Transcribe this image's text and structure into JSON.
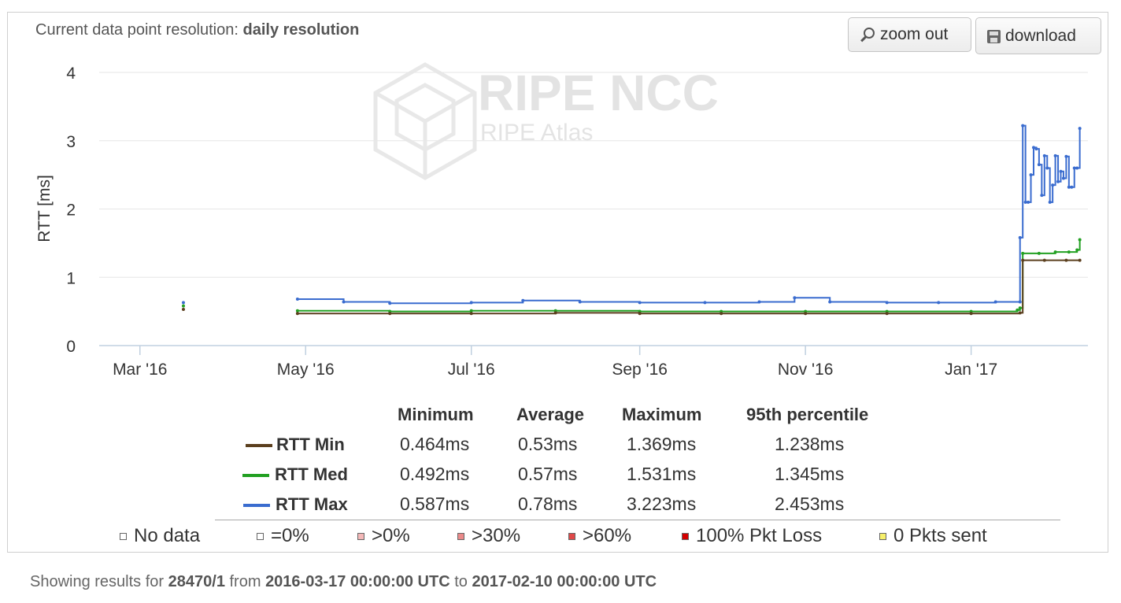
{
  "header": {
    "resolution_prefix": "Current data point resolution:",
    "resolution_value": "daily resolution"
  },
  "toolbar": {
    "zoom_out_label": "zoom out",
    "download_label": "download"
  },
  "watermark": {
    "brand": "RIPE NCC",
    "product": "RIPE Atlas"
  },
  "colors": {
    "rtt_min": "#5b3f1e",
    "rtt_med": "#22a022",
    "rtt_max": "#3a6ccf"
  },
  "chart_data": {
    "type": "line",
    "ylabel": "RTT [ms]",
    "ylim": [
      0,
      4
    ],
    "yticks": [
      0,
      1,
      2,
      3,
      4
    ],
    "xlim": [
      "2016-02-15",
      "2017-02-13"
    ],
    "xticks": [
      {
        "date": "2016-03-01",
        "label": "Mar '16"
      },
      {
        "date": "2016-05-01",
        "label": "May '16"
      },
      {
        "date": "2016-07-01",
        "label": "Jul '16"
      },
      {
        "date": "2016-09-01",
        "label": "Sep '16"
      },
      {
        "date": "2016-11-01",
        "label": "Nov '16"
      },
      {
        "date": "2017-01-01",
        "label": "Jan '17"
      }
    ],
    "grid": true,
    "series": [
      {
        "name": "RTT Min",
        "points": [
          [
            "2016-03-17",
            0.53
          ],
          [
            "2016-04-28",
            0.47
          ],
          [
            "2016-06-01",
            0.47
          ],
          [
            "2016-07-01",
            0.47
          ],
          [
            "2016-08-01",
            0.48
          ],
          [
            "2016-09-01",
            0.47
          ],
          [
            "2016-10-01",
            0.47
          ],
          [
            "2016-11-01",
            0.47
          ],
          [
            "2016-12-01",
            0.47
          ],
          [
            "2017-01-01",
            0.47
          ],
          [
            "2017-01-19",
            0.48
          ],
          [
            "2017-01-20",
            1.25
          ],
          [
            "2017-01-28",
            1.25
          ],
          [
            "2017-02-05",
            1.25
          ],
          [
            "2017-02-10",
            1.25
          ]
        ]
      },
      {
        "name": "RTT Med",
        "points": [
          [
            "2016-03-17",
            0.58
          ],
          [
            "2016-04-28",
            0.51
          ],
          [
            "2016-06-01",
            0.5
          ],
          [
            "2016-07-01",
            0.51
          ],
          [
            "2016-08-01",
            0.51
          ],
          [
            "2016-09-01",
            0.5
          ],
          [
            "2016-10-01",
            0.5
          ],
          [
            "2016-11-01",
            0.5
          ],
          [
            "2016-12-01",
            0.5
          ],
          [
            "2017-01-01",
            0.5
          ],
          [
            "2017-01-18",
            0.52
          ],
          [
            "2017-01-19",
            0.55
          ],
          [
            "2017-01-20",
            1.35
          ],
          [
            "2017-01-26",
            1.35
          ],
          [
            "2017-02-01",
            1.37
          ],
          [
            "2017-02-06",
            1.37
          ],
          [
            "2017-02-09",
            1.4
          ],
          [
            "2017-02-10",
            1.55
          ]
        ]
      },
      {
        "name": "RTT Max",
        "points": [
          [
            "2016-03-17",
            0.63
          ],
          [
            "2016-04-28",
            0.68
          ],
          [
            "2016-05-15",
            0.64
          ],
          [
            "2016-06-01",
            0.62
          ],
          [
            "2016-07-01",
            0.63
          ],
          [
            "2016-07-20",
            0.66
          ],
          [
            "2016-08-10",
            0.64
          ],
          [
            "2016-09-01",
            0.63
          ],
          [
            "2016-09-25",
            0.63
          ],
          [
            "2016-10-15",
            0.64
          ],
          [
            "2016-10-28",
            0.7
          ],
          [
            "2016-11-10",
            0.64
          ],
          [
            "2016-12-01",
            0.63
          ],
          [
            "2016-12-20",
            0.63
          ],
          [
            "2017-01-10",
            0.64
          ],
          [
            "2017-01-19",
            0.64
          ],
          [
            "2017-01-19",
            1.58
          ],
          [
            "2017-01-20",
            3.22
          ],
          [
            "2017-01-21",
            2.1
          ],
          [
            "2017-01-22",
            2.1
          ],
          [
            "2017-01-23",
            2.5
          ],
          [
            "2017-01-24",
            2.9
          ],
          [
            "2017-01-25",
            2.88
          ],
          [
            "2017-01-26",
            2.65
          ],
          [
            "2017-01-27",
            2.2
          ],
          [
            "2017-01-28",
            2.78
          ],
          [
            "2017-01-29",
            2.6
          ],
          [
            "2017-01-30",
            2.1
          ],
          [
            "2017-01-31",
            2.35
          ],
          [
            "2017-02-01",
            2.78
          ],
          [
            "2017-02-02",
            2.4
          ],
          [
            "2017-02-03",
            2.55
          ],
          [
            "2017-02-04",
            2.45
          ],
          [
            "2017-02-05",
            2.77
          ],
          [
            "2017-02-06",
            2.32
          ],
          [
            "2017-02-07",
            2.32
          ],
          [
            "2017-02-08",
            2.6
          ],
          [
            "2017-02-09",
            2.6
          ],
          [
            "2017-02-10",
            3.18
          ]
        ]
      }
    ]
  },
  "stats": {
    "headers": [
      "Minimum",
      "Average",
      "Maximum",
      "95th percentile"
    ],
    "rows": [
      {
        "name": "RTT Min",
        "min": "0.464ms",
        "avg": "0.53ms",
        "max": "1.369ms",
        "p95": "1.238ms"
      },
      {
        "name": "RTT Med",
        "min": "0.492ms",
        "avg": "0.57ms",
        "max": "1.531ms",
        "p95": "1.345ms"
      },
      {
        "name": "RTT Max",
        "min": "0.587ms",
        "avg": "0.78ms",
        "max": "3.223ms",
        "p95": "2.453ms"
      }
    ]
  },
  "loss_legend": [
    {
      "label": "No data",
      "color": "#ffffff"
    },
    {
      "label": "=0%",
      "color": "#ffffff"
    },
    {
      "label": ">0%",
      "color": "#f4b8b8"
    },
    {
      "label": ">30%",
      "color": "#eb8a8a"
    },
    {
      "label": ">60%",
      "color": "#e04848"
    },
    {
      "label": "100% Pkt Loss",
      "color": "#d40000"
    },
    {
      "label": "0 Pkts sent",
      "color": "#f7f06a"
    }
  ],
  "footer": {
    "prefix": "Showing results for",
    "measurement": "28470/1",
    "from_word": "from",
    "start": "2016-03-17 00:00:00 UTC",
    "to_word": "to",
    "end": "2017-02-10 00:00:00 UTC"
  }
}
